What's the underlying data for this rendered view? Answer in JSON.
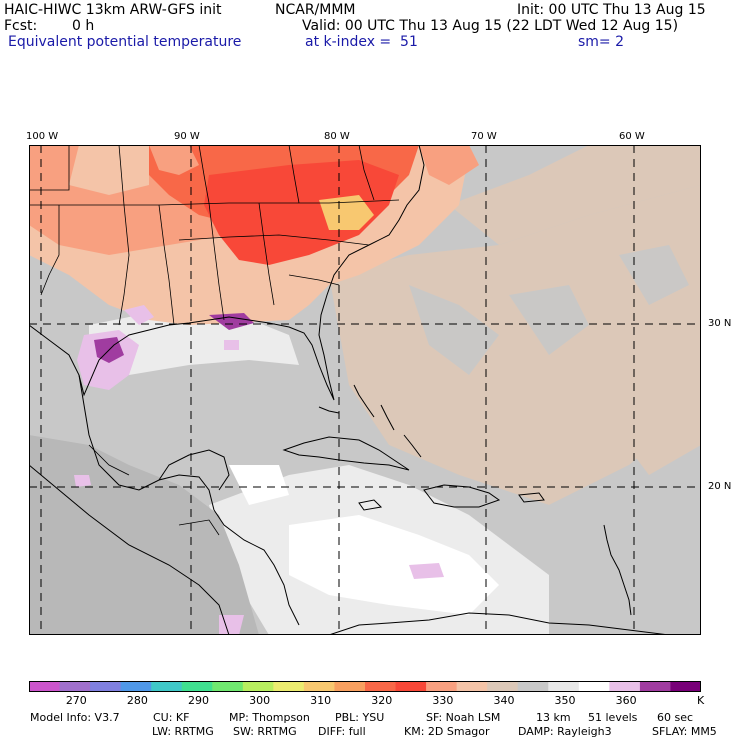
{
  "header": {
    "model_title": "HAIC-HIWC 13km ARW-GFS init",
    "institution": "NCAR/MMM",
    "init_time": "Init: 00 UTC Thu 13 Aug 15",
    "fcst_label": "Fcst:",
    "fcst_value": "0 h",
    "valid_time": "Valid: 00 UTC Thu 13 Aug 15 (22 LDT Wed 12 Aug 15)",
    "field_name": "Equivalent potential temperature",
    "level": "at k-index =  51",
    "smoothing": "sm= 2"
  },
  "map": {
    "lon_labels": [
      "100 W",
      "90 W",
      "80 W",
      "70 W",
      "60 W"
    ],
    "lat_labels": [
      "30 N",
      "20 N"
    ]
  },
  "colorbar": {
    "colors": [
      "#cc55cc",
      "#a070cc",
      "#8080e0",
      "#5098e8",
      "#40c8c8",
      "#40e090",
      "#70e870",
      "#b8ee60",
      "#ecec70",
      "#f8c870",
      "#f8a060",
      "#f86848",
      "#f84838",
      "#f8a080",
      "#f4c4a8",
      "#dcc8b8",
      "#c8c8c8",
      "#e8e8e8",
      "#ffffff",
      "#e8c0e8",
      "#a03ca0",
      "#780078"
    ],
    "tick_labels": [
      "270",
      "280",
      "290",
      "300",
      "310",
      "320",
      "330",
      "340",
      "350",
      "360"
    ],
    "unit": "K"
  },
  "footer": {
    "line1": [
      "Model Info: V3.7",
      "CU: KF",
      "MP: Thompson",
      "PBL: YSU",
      "SF: Noah LSM",
      "13 km",
      "51 levels",
      "60 sec"
    ],
    "line2": [
      "LW: RRTMG",
      "SW: RRTMG",
      "DIFF: full",
      "KM: 2D Smagor",
      "DAMP: Rayleigh3",
      "SFLAY: MM5"
    ]
  }
}
